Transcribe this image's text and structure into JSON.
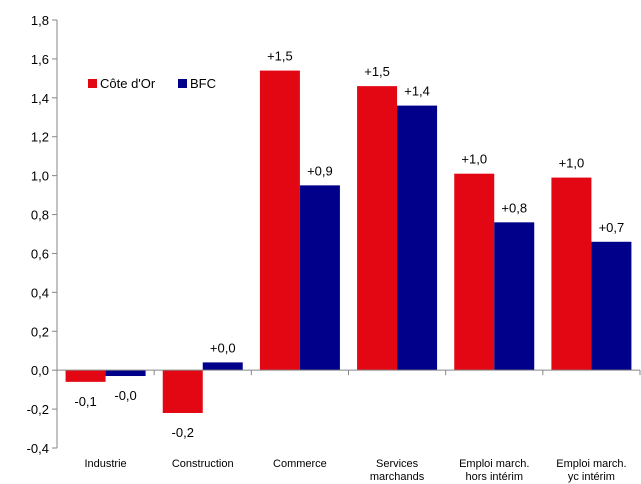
{
  "chart_data": {
    "type": "bar",
    "categories": [
      [
        "Industrie"
      ],
      [
        "Construction"
      ],
      [
        "Commerce"
      ],
      [
        "Services",
        "marchands"
      ],
      [
        "Emploi march.",
        "hors intérim"
      ],
      [
        "Emploi march.",
        "yc intérim"
      ]
    ],
    "series": [
      {
        "name": "Côte d'Or",
        "color": "#e30613",
        "values": [
          -0.06,
          -0.22,
          1.54,
          1.46,
          1.01,
          0.99
        ],
        "labels": [
          "-0,1",
          "-0,2",
          "+1,5",
          "+1,5",
          "+1,0",
          "+1,0"
        ]
      },
      {
        "name": "BFC",
        "color": "#00008b",
        "values": [
          -0.03,
          0.04,
          0.95,
          1.36,
          0.76,
          0.66
        ],
        "labels": [
          "-0,0",
          "+0,0",
          "+0,9",
          "+1,4",
          "+0,8",
          "+0,7"
        ]
      }
    ],
    "ylim": [
      -0.4,
      1.8
    ],
    "yticks": [
      -0.4,
      -0.2,
      0.0,
      0.2,
      0.4,
      0.6,
      0.8,
      1.0,
      1.2,
      1.4,
      1.6,
      1.8
    ],
    "ytick_labels": [
      "-0,4",
      "-0,2",
      "0,0",
      "0,2",
      "0,4",
      "0,6",
      "0,8",
      "1,0",
      "1,2",
      "1,4",
      "1,6",
      "1,8"
    ],
    "grid": false,
    "legend_position": "top-left",
    "title": "",
    "xlabel": "",
    "ylabel": ""
  }
}
